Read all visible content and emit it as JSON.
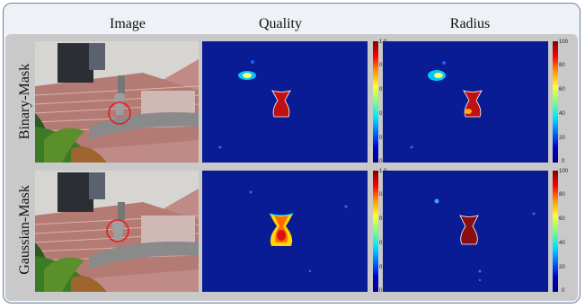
{
  "headers": {
    "image": "Image",
    "quality": "Quality",
    "radius": "Radius"
  },
  "rows": [
    {
      "label": "Binary-Mask"
    },
    {
      "label": "Gaussian-Mask"
    }
  ],
  "colorbars": {
    "quality": [
      "1.0",
      "0.8",
      "0.6",
      "0.4",
      "0.2",
      "0.0"
    ],
    "radius": [
      "100",
      "80",
      "60",
      "40",
      "20",
      "0"
    ]
  },
  "colors": {
    "frame": "#6f7fa0",
    "heatmap_bg": "#0a1c93",
    "marker": "#e02020"
  }
}
